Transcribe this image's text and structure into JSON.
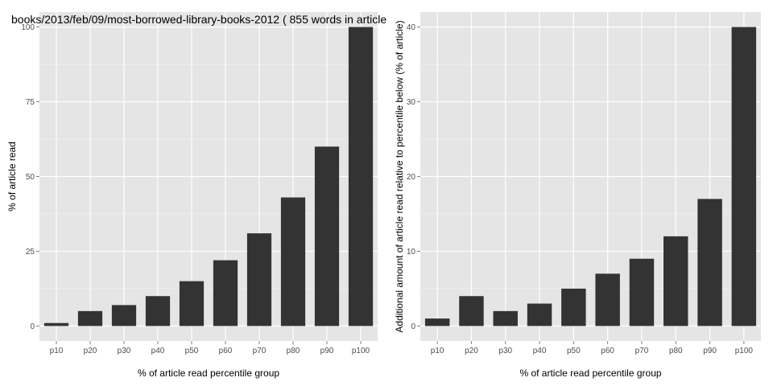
{
  "chart_data": [
    {
      "type": "bar",
      "title": "books/2013/feb/09/most-borrowed-library-books-2012 ( 855 words in article)",
      "xlabel": "% of article read percentile group",
      "ylabel": "% of article read",
      "categories": [
        "p10",
        "p20",
        "p30",
        "p40",
        "p50",
        "p60",
        "p70",
        "p80",
        "p90",
        "p100"
      ],
      "values": [
        1,
        5,
        7,
        10,
        15,
        22,
        31,
        43,
        60,
        100
      ],
      "yticks": [
        0,
        25,
        50,
        75,
        100
      ],
      "ylim": [
        -5,
        105
      ],
      "grid": true,
      "bar_color": "#333333",
      "panel_color": "#e5e5e5"
    },
    {
      "type": "bar",
      "title": "",
      "xlabel": "% of article read percentile group",
      "ylabel": "Additional amount of article read relative to percentile below (% of article)",
      "categories": [
        "p10",
        "p20",
        "p30",
        "p40",
        "p50",
        "p60",
        "p70",
        "p80",
        "p90",
        "p100"
      ],
      "values": [
        1,
        4,
        2,
        3,
        5,
        7,
        9,
        12,
        17,
        40
      ],
      "yticks": [
        0,
        10,
        20,
        30,
        40
      ],
      "ylim": [
        -2,
        42
      ],
      "grid": true,
      "bar_color": "#333333",
      "panel_color": "#e5e5e5"
    }
  ]
}
